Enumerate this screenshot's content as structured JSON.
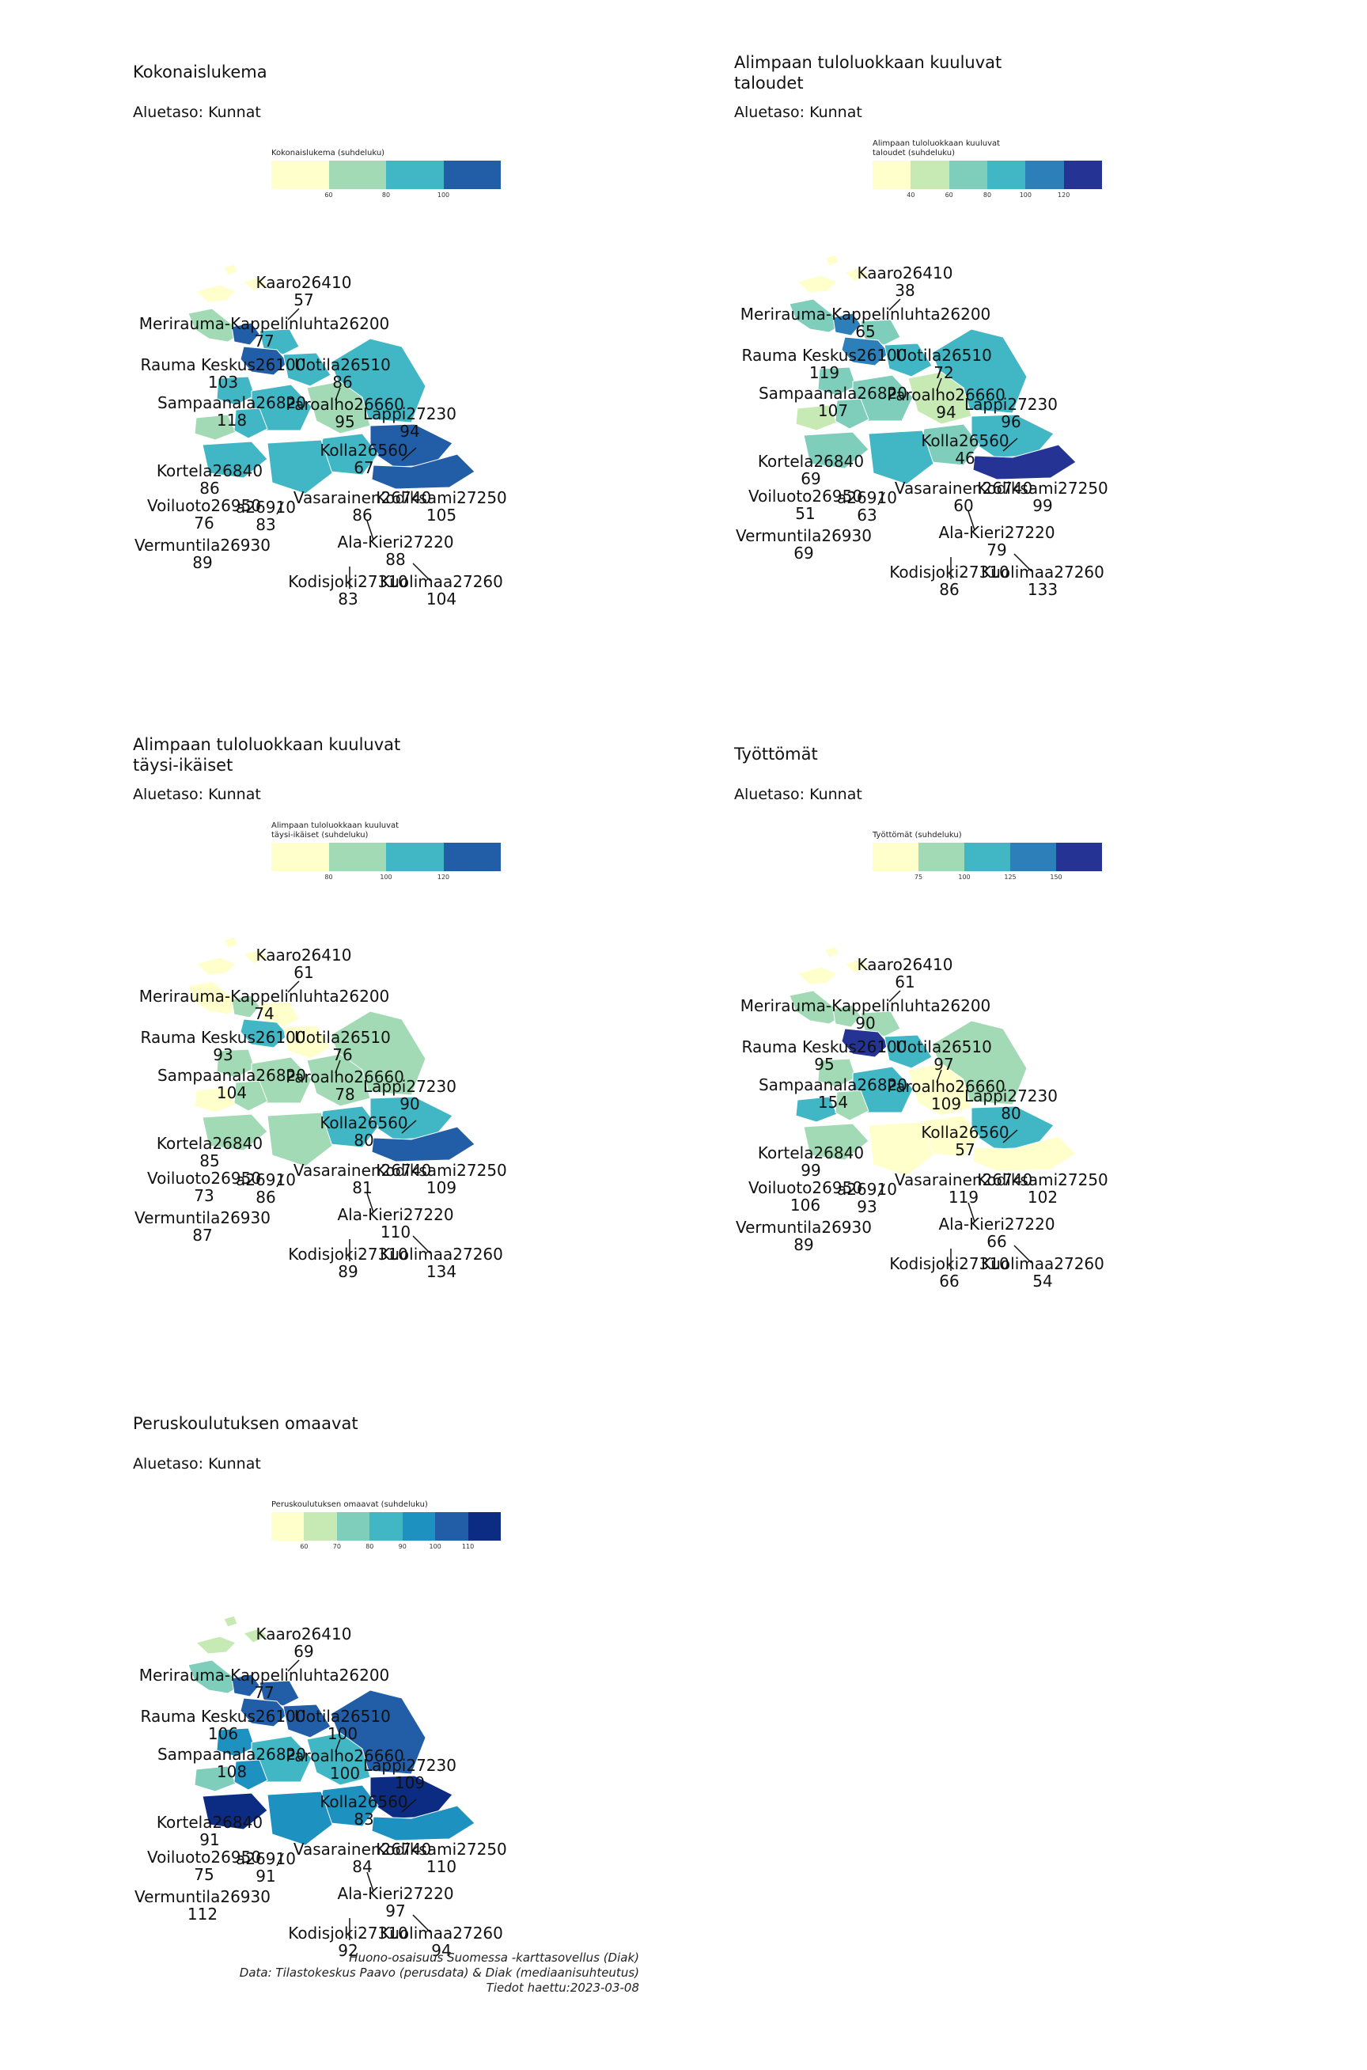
{
  "panels": [
    {
      "title": "Kokonaislukema",
      "subtitle": "Aluetaso: Kunnat",
      "legend": {
        "title": "Kokonaislukema (suhdeluku)",
        "colors": [
          "#ffffcc",
          "#a1dab4",
          "#41b6c4",
          "#225ea8"
        ],
        "ticks": [
          "60",
          "80",
          "100"
        ]
      },
      "regions": [
        {
          "name": "Kaaro26410",
          "value": "57"
        },
        {
          "name": "Merirauma-Kappelinluhta26200",
          "value": "77"
        },
        {
          "name": "Rauma Keskus26100",
          "value": "103"
        },
        {
          "name": "Uotila26510",
          "value": "86"
        },
        {
          "name": "Sampaanala26820",
          "value": "118"
        },
        {
          "name": "Paroalho26660",
          "value": "95"
        },
        {
          "name": "Lappi27230",
          "value": "94"
        },
        {
          "name": "Kolla26560",
          "value": "67"
        },
        {
          "name": "Kortela26840",
          "value": "86"
        },
        {
          "name": "Vasarainen26740",
          "value": "86"
        },
        {
          "name": "Kodiksami27250",
          "value": "105"
        },
        {
          "name": "Voiluoto26950",
          "value": "76"
        },
        {
          "name": "a26910",
          "value": "83"
        },
        {
          "name": "Ala-Kieri27220",
          "value": "88"
        },
        {
          "name": "Vermuntila26930",
          "value": "89"
        },
        {
          "name": "Kodisjoki27310",
          "value": "83"
        },
        {
          "name": "Kuolimaa27260",
          "value": "104"
        }
      ]
    },
    {
      "title": "Alimpaan tuloluokkaan kuuluvat\ntaloudet",
      "subtitle": "Aluetaso: Kunnat",
      "legend": {
        "title": "Alimpaan tuloluokkaan kuuluvat\ntaloudet (suhdeluku)",
        "colors": [
          "#ffffcc",
          "#c7e9b4",
          "#7fcdbb",
          "#41b6c4",
          "#2c7fb8",
          "#253494"
        ],
        "ticks": [
          "40",
          "60",
          "80",
          "100",
          "120"
        ]
      },
      "regions": [
        {
          "name": "Kaaro26410",
          "value": "38"
        },
        {
          "name": "Merirauma-Kappelinluhta26200",
          "value": "65"
        },
        {
          "name": "Rauma Keskus26100",
          "value": "119"
        },
        {
          "name": "Uotila26510",
          "value": "72"
        },
        {
          "name": "Sampaanala26820",
          "value": "107"
        },
        {
          "name": "Paroalho26660",
          "value": "94"
        },
        {
          "name": "Lappi27230",
          "value": "96"
        },
        {
          "name": "Kolla26560",
          "value": "46"
        },
        {
          "name": "Kortela26840",
          "value": "69"
        },
        {
          "name": "Vasarainen26740",
          "value": "60"
        },
        {
          "name": "Kodiksami27250",
          "value": "99"
        },
        {
          "name": "Voiluoto26950",
          "value": "51"
        },
        {
          "name": "a26910",
          "value": "63"
        },
        {
          "name": "Ala-Kieri27220",
          "value": "79"
        },
        {
          "name": "Vermuntila26930",
          "value": "69"
        },
        {
          "name": "Kodisjoki27310",
          "value": "86"
        },
        {
          "name": "Kuolimaa27260",
          "value": "133"
        }
      ]
    },
    {
      "title": "Alimpaan tuloluokkaan kuuluvat\ntäysi-ikäiset",
      "subtitle": "Aluetaso: Kunnat",
      "legend": {
        "title": "Alimpaan tuloluokkaan kuuluvat\ntäysi-ikäiset (suhdeluku)",
        "colors": [
          "#ffffcc",
          "#a1dab4",
          "#41b6c4",
          "#225ea8"
        ],
        "ticks": [
          "80",
          "100",
          "120"
        ]
      },
      "regions": [
        {
          "name": "Kaaro26410",
          "value": "61"
        },
        {
          "name": "Merirauma-Kappelinluhta26200",
          "value": "74"
        },
        {
          "name": "Rauma Keskus26100",
          "value": "93"
        },
        {
          "name": "Uotila26510",
          "value": "76"
        },
        {
          "name": "Sampaanala26820",
          "value": "104"
        },
        {
          "name": "Paroalho26660",
          "value": "78"
        },
        {
          "name": "Lappi27230",
          "value": "90"
        },
        {
          "name": "Kolla26560",
          "value": "80"
        },
        {
          "name": "Kortela26840",
          "value": "85"
        },
        {
          "name": "Vasarainen26740",
          "value": "81"
        },
        {
          "name": "Kodiksami27250",
          "value": "109"
        },
        {
          "name": "Voiluoto26950",
          "value": "73"
        },
        {
          "name": "a26910",
          "value": "86"
        },
        {
          "name": "Ala-Kieri27220",
          "value": "110"
        },
        {
          "name": "Vermuntila26930",
          "value": "87"
        },
        {
          "name": "Kodisjoki27310",
          "value": "89"
        },
        {
          "name": "Kuolimaa27260",
          "value": "134"
        }
      ]
    },
    {
      "title": "Työttömät",
      "subtitle": "Aluetaso: Kunnat",
      "legend": {
        "title": "Työttömät (suhdeluku)",
        "colors": [
          "#ffffcc",
          "#a1dab4",
          "#41b6c4",
          "#2c7fb8",
          "#253494"
        ],
        "ticks": [
          "75",
          "100",
          "125",
          "150"
        ]
      },
      "regions": [
        {
          "name": "Kaaro26410",
          "value": "61"
        },
        {
          "name": "Merirauma-Kappelinluhta26200",
          "value": "90"
        },
        {
          "name": "Rauma Keskus26100",
          "value": "95"
        },
        {
          "name": "Uotila26510",
          "value": "97"
        },
        {
          "name": "Sampaanala26820",
          "value": "154"
        },
        {
          "name": "Paroalho26660",
          "value": "109"
        },
        {
          "name": "Lappi27230",
          "value": "80"
        },
        {
          "name": "Kolla26560",
          "value": "57"
        },
        {
          "name": "Kortela26840",
          "value": "99"
        },
        {
          "name": "Vasarainen26740",
          "value": "119"
        },
        {
          "name": "Kodiksami27250",
          "value": "102"
        },
        {
          "name": "Voiluoto26950",
          "value": "106"
        },
        {
          "name": "a26910",
          "value": "93"
        },
        {
          "name": "Ala-Kieri27220",
          "value": "66"
        },
        {
          "name": "Vermuntila26930",
          "value": "89"
        },
        {
          "name": "Kodisjoki27310",
          "value": "66"
        },
        {
          "name": "Kuolimaa27260",
          "value": "54"
        }
      ]
    },
    {
      "title": "Peruskoulutuksen omaavat",
      "subtitle": "Aluetaso: Kunnat",
      "legend": {
        "title": "Peruskoulutuksen omaavat (suhdeluku)",
        "colors": [
          "#ffffcc",
          "#c7e9b4",
          "#7fcdbb",
          "#41b6c4",
          "#1d91c0",
          "#225ea8",
          "#0c2c84"
        ],
        "ticks": [
          "60",
          "70",
          "80",
          "90",
          "100",
          "110"
        ]
      },
      "regions": [
        {
          "name": "Kaaro26410",
          "value": "69"
        },
        {
          "name": "Merirauma-Kappelinluhta26200",
          "value": "77"
        },
        {
          "name": "Rauma Keskus26100",
          "value": "106"
        },
        {
          "name": "Uotila26510",
          "value": "100"
        },
        {
          "name": "Sampaanala26820",
          "value": "108"
        },
        {
          "name": "Paroalho26660",
          "value": "100"
        },
        {
          "name": "Lappi27230",
          "value": "109"
        },
        {
          "name": "Kolla26560",
          "value": "83"
        },
        {
          "name": "Kortela26840",
          "value": "91"
        },
        {
          "name": "Vasarainen26740",
          "value": "84"
        },
        {
          "name": "Kodiksami27250",
          "value": "110"
        },
        {
          "name": "Voiluoto26950",
          "value": "75"
        },
        {
          "name": "a26910",
          "value": "91"
        },
        {
          "name": "Ala-Kieri27220",
          "value": "97"
        },
        {
          "name": "Vermuntila26930",
          "value": "112"
        },
        {
          "name": "Kodisjoki27310",
          "value": "92"
        },
        {
          "name": "Kuolimaa27260",
          "value": "94"
        }
      ]
    }
  ],
  "caption": {
    "line1": "Huono-osaisuus Suomessa -karttasovellus (Diak)",
    "line2": "Data: Tilastokeskus Paavo (perusdata) & Diak (mediaanisuhteutus)",
    "line3": "Tiedot haettu:2023-03-08"
  }
}
